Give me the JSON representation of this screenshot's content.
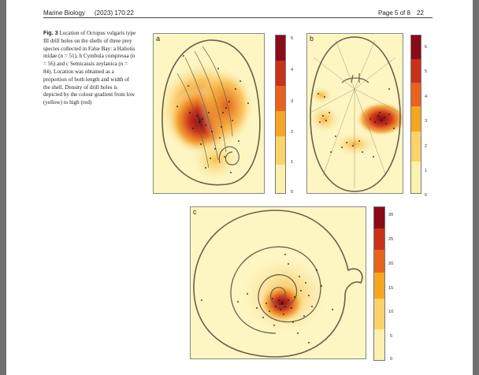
{
  "header": {
    "journal": "Marine Biology",
    "issue": "(2023) 170:22",
    "page": "Page 5 of 8",
    "page_number": "22"
  },
  "caption": {
    "fig_label": "Fig. 3",
    "text": "Location of Octopus vulgaris type III drill holes on the shells of three prey species collected in False Bay: a Haliotis midae (n = 51), b Cymbula compressa (n = 56) and c Semicassis zeylanica (n = 84). Location was obtained as a proportion of both length and width of the shell. Density of drill holes is depicted by the colour gradient from low (yellow) to high (red)"
  },
  "panels": {
    "a": {
      "label": "a",
      "species": "Haliotis midae",
      "n": 51,
      "colorbar_ticks": [
        "5",
        "4",
        "3",
        "2",
        "1",
        "0"
      ]
    },
    "b": {
      "label": "b",
      "species": "Cymbula compressa",
      "n": 56,
      "colorbar_ticks": [
        "6",
        "5",
        "4",
        "3",
        "2",
        "1",
        "0"
      ]
    },
    "c": {
      "label": "c",
      "species": "Semicassis zeylanica",
      "n": 84,
      "colorbar_ticks": [
        "30",
        "25",
        "20",
        "15",
        "10",
        "5",
        "0"
      ]
    }
  },
  "colors": {
    "low": "#fdf6c3",
    "mid": "#f5a623",
    "high": "#8b0a17",
    "outline": "#6b5f4a"
  }
}
